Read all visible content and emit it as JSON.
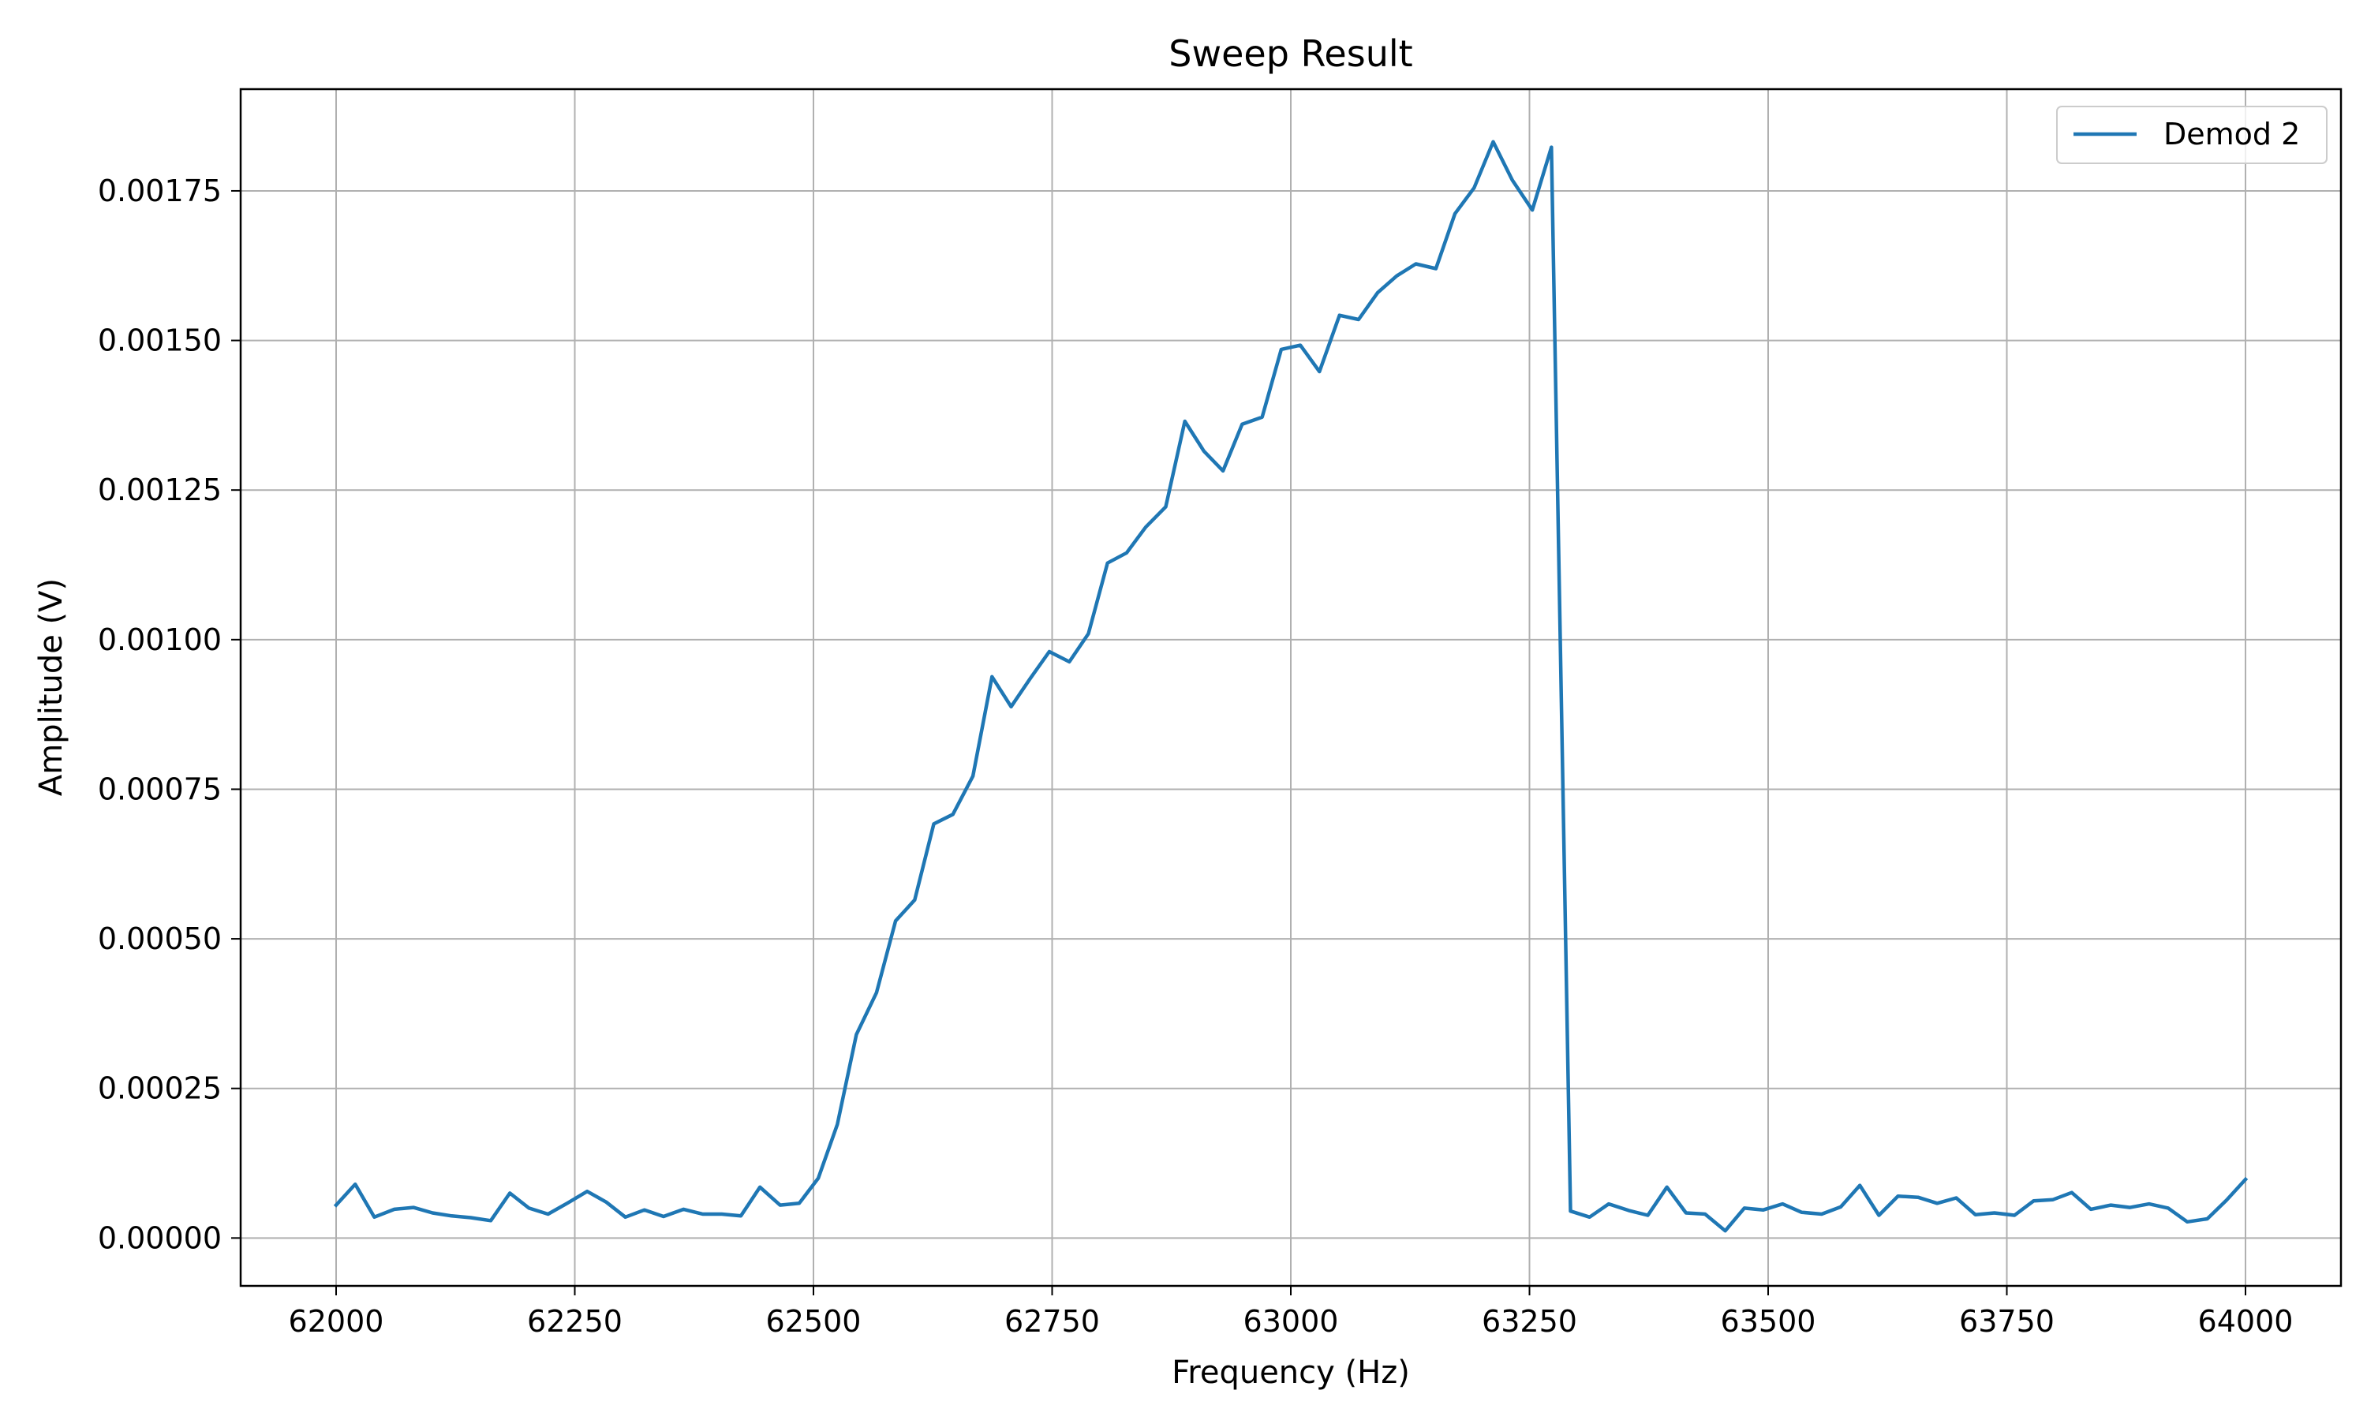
{
  "chart_data": {
    "type": "line",
    "title": "Sweep Result",
    "xlabel": "Frequency (Hz)",
    "ylabel": "Amplitude (V)",
    "xlim": [
      61900,
      64100
    ],
    "ylim": [
      -8e-05,
      0.00192
    ],
    "x_ticks": [
      62000,
      62250,
      62500,
      62750,
      63000,
      63250,
      63500,
      63750,
      64000
    ],
    "x_tick_labels": [
      "62000",
      "62250",
      "62500",
      "62750",
      "63000",
      "63250",
      "63500",
      "63750",
      "64000"
    ],
    "y_ticks": [
      0,
      0.00025,
      0.0005,
      0.00075,
      0.001,
      0.00125,
      0.0015,
      0.00175
    ],
    "y_tick_labels": [
      "0.00000",
      "0.00025",
      "0.00050",
      "0.00075",
      "0.00100",
      "0.00125",
      "0.00150",
      "0.00175"
    ],
    "grid": true,
    "legend_position": "top-right",
    "series": [
      {
        "name": "Demod 2",
        "color": "#1f77b4",
        "x": [
          62000,
          62020,
          62040,
          62061,
          62081,
          62101,
          62121,
          62141,
          62162,
          62182,
          62202,
          62222,
          62242,
          62263,
          62283,
          62303,
          62323,
          62343,
          62364,
          62384,
          62404,
          62424,
          62444,
          62465,
          62485,
          62505,
          62525,
          62545,
          62566,
          62586,
          62606,
          62626,
          62646,
          62667,
          62687,
          62707,
          62727,
          62747,
          62768,
          62788,
          62808,
          62828,
          62848,
          62869,
          62889,
          62909,
          62929,
          62949,
          62970,
          62990,
          63010,
          63030,
          63051,
          63071,
          63091,
          63111,
          63131,
          63152,
          63172,
          63192,
          63212,
          63232,
          63253,
          63273,
          63293,
          63313,
          63333,
          63354,
          63374,
          63394,
          63414,
          63434,
          63455,
          63475,
          63495,
          63515,
          63535,
          63556,
          63576,
          63596,
          63616,
          63636,
          63657,
          63677,
          63697,
          63717,
          63737,
          63758,
          63778,
          63798,
          63818,
          63838,
          63859,
          63879,
          63899,
          63919,
          63939,
          63960,
          63980,
          64000
        ],
        "y": [
          5.5e-05,
          9e-05,
          3.5e-05,
          4.8e-05,
          5.1e-05,
          4.2e-05,
          3.7e-05,
          3.4e-05,
          2.9e-05,
          7.5e-05,
          5e-05,
          4e-05,
          5.8e-05,
          7.8e-05,
          6e-05,
          3.5e-05,
          4.7e-05,
          3.6e-05,
          4.8e-05,
          4e-05,
          4e-05,
          3.7e-05,
          8.5e-05,
          5.5e-05,
          5.8e-05,
          0.0001,
          0.00019,
          0.00034,
          0.00041,
          0.00053,
          0.000565,
          0.000692,
          0.000708,
          0.000772,
          0.000938,
          0.000888,
          0.000935,
          0.00098,
          0.000963,
          0.00101,
          0.001128,
          0.001145,
          0.001188,
          0.001222,
          0.001365,
          0.001315,
          0.001282,
          0.00136,
          0.001372,
          0.001485,
          0.001492,
          0.001448,
          0.001542,
          0.001535,
          0.00158,
          0.001608,
          0.001628,
          0.00162,
          0.001712,
          0.001755,
          0.001832,
          0.001768,
          0.001718,
          0.001823,
          4.5e-05,
          3.5e-05,
          5.7e-05,
          4.6e-05,
          3.8e-05,
          8.5e-05,
          4.2e-05,
          4e-05,
          1.2e-05,
          5e-05,
          4.7e-05,
          5.7e-05,
          4.3e-05,
          4e-05,
          5.2e-05,
          8.8e-05,
          3.8e-05,
          7e-05,
          6.8e-05,
          5.8e-05,
          6.7e-05,
          3.9e-05,
          4.2e-05,
          3.8e-05,
          6.2e-05,
          6.4e-05,
          7.6e-05,
          4.8e-05,
          5.5e-05,
          5.1e-05,
          5.7e-05,
          5e-05,
          2.7e-05,
          3.2e-05,
          6.3e-05,
          9.8e-05
        ]
      }
    ]
  }
}
